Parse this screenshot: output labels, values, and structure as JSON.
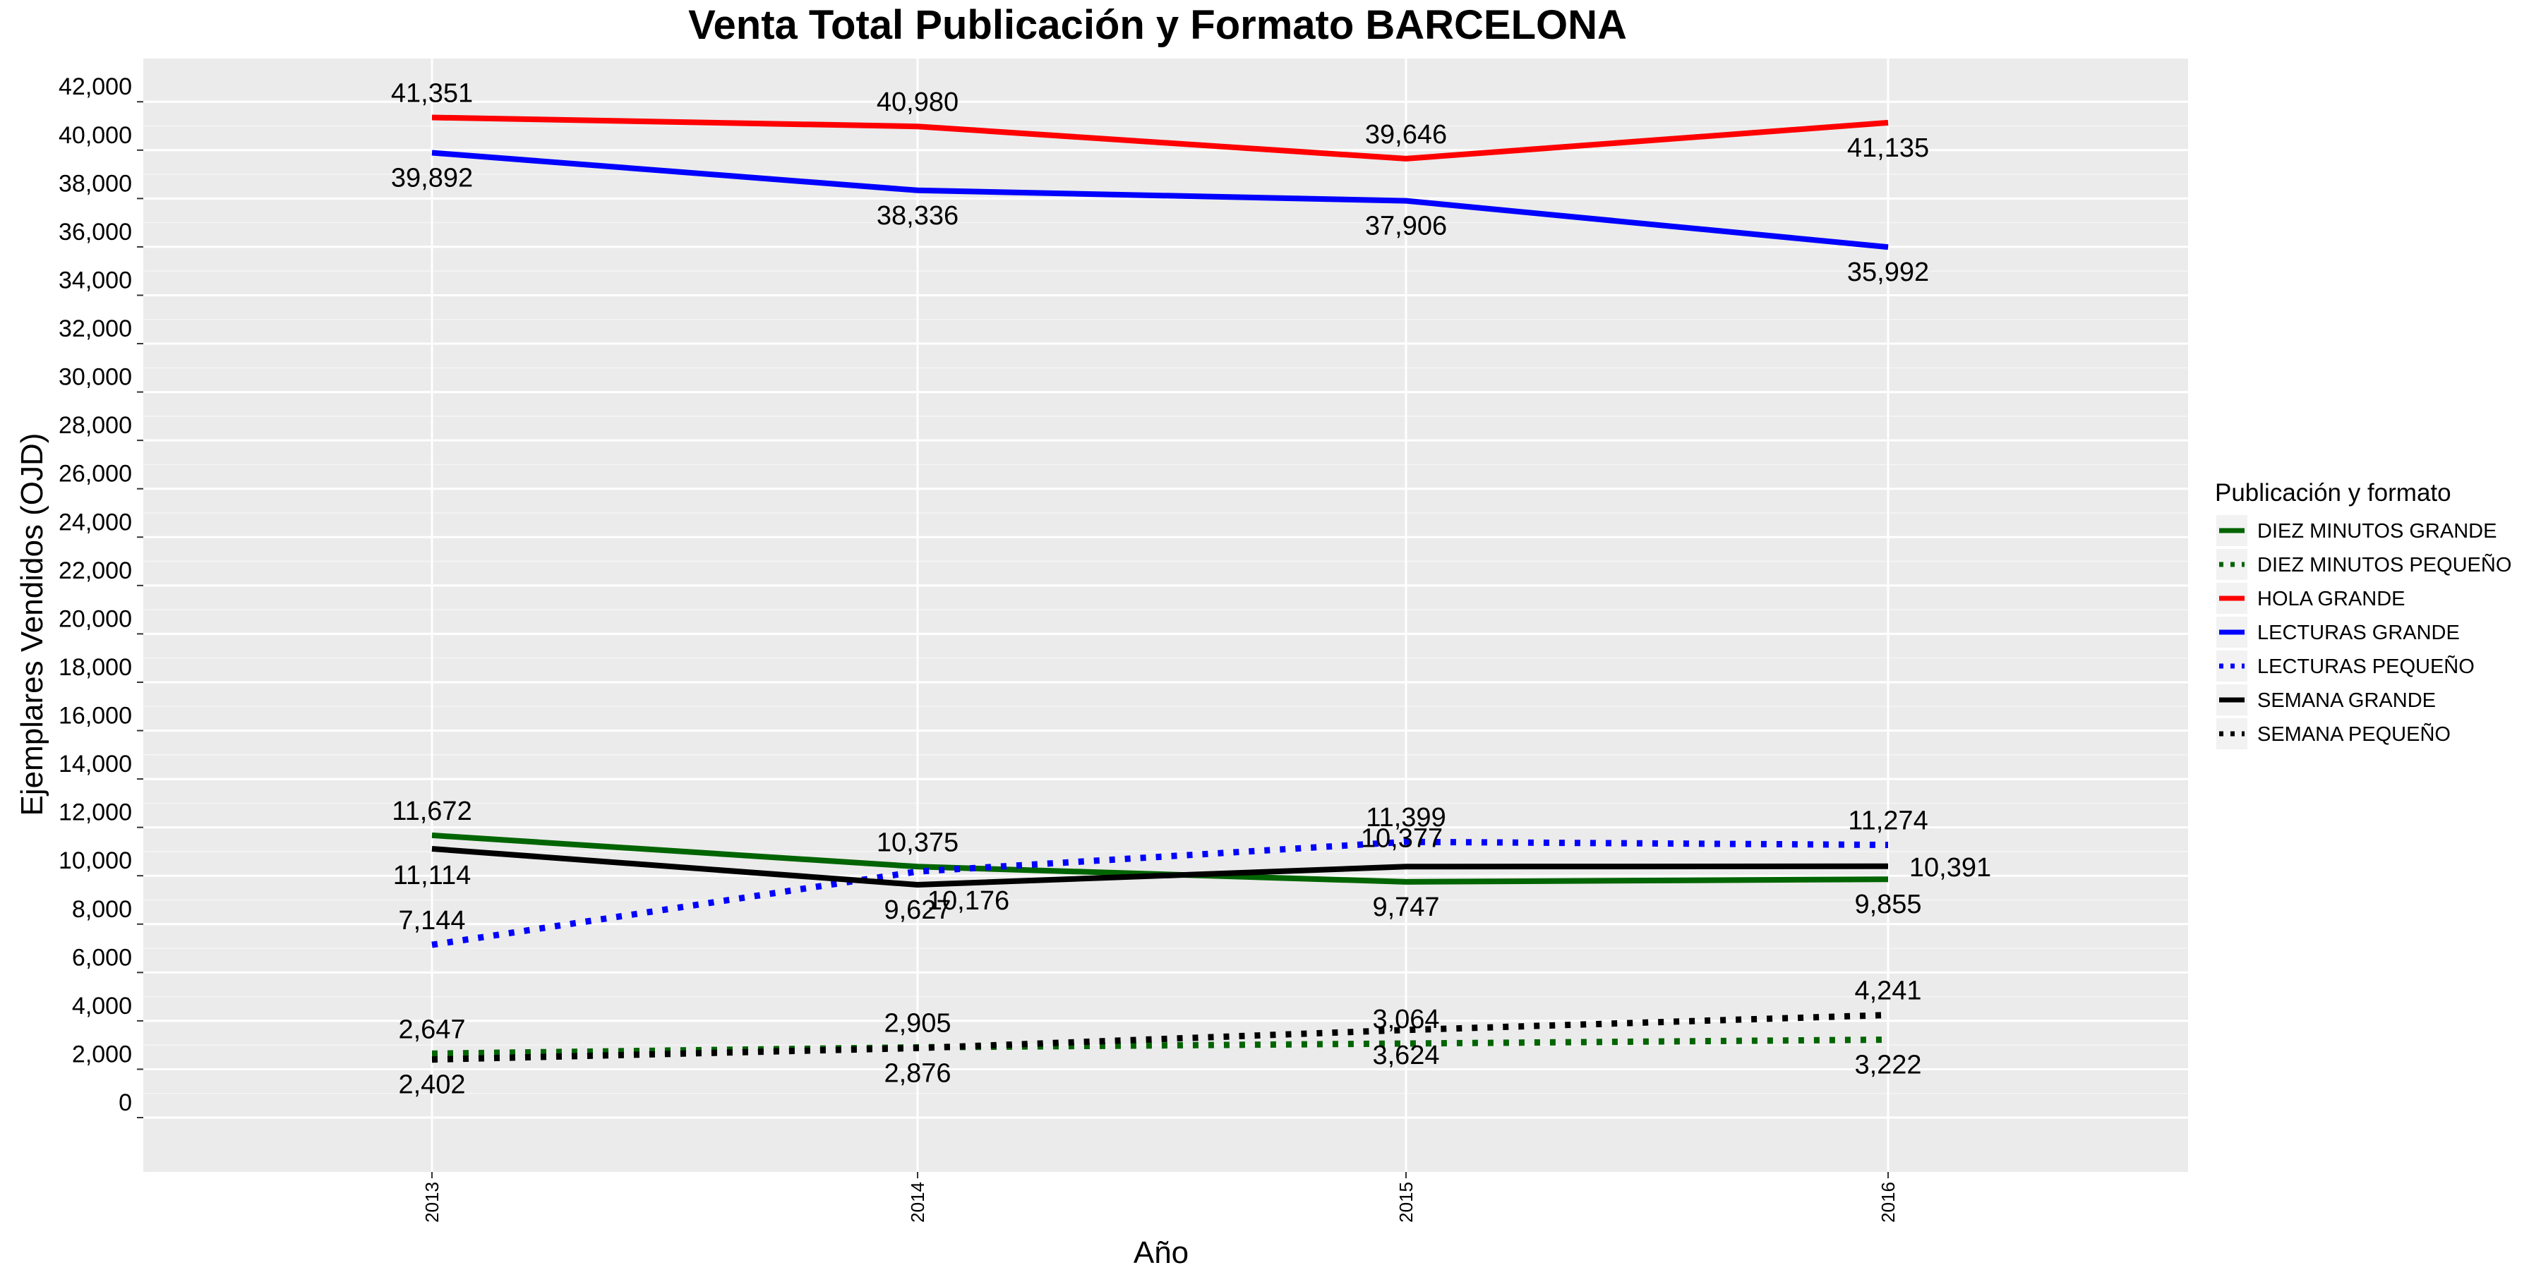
{
  "chart_data": {
    "type": "line",
    "title": "Venta Total Publicación y Formato  BARCELONA",
    "xlabel": "Año",
    "ylabel": "Ejemplares Vendidos (OJD)",
    "x": [
      "2013",
      "2014",
      "2015",
      "2016"
    ],
    "ylim": [
      -2000,
      43000
    ],
    "yticks": [
      0,
      2000,
      4000,
      6000,
      8000,
      10000,
      12000,
      14000,
      16000,
      18000,
      20000,
      22000,
      24000,
      26000,
      28000,
      30000,
      32000,
      34000,
      36000,
      38000,
      40000,
      42000
    ],
    "ytick_labels": [
      "0",
      "2,000",
      "4,000",
      "6,000",
      "8,000",
      "10,000",
      "12,000",
      "14,000",
      "16,000",
      "18,000",
      "20,000",
      "22,000",
      "24,000",
      "26,000",
      "28,000",
      "30,000",
      "32,000",
      "34,000",
      "36,000",
      "38,000",
      "40,000",
      "42,000"
    ],
    "legend_title": "Publicación y formato",
    "legend_position": "right",
    "grid": true,
    "series": [
      {
        "name": "DIEZ MINUTOS GRANDE",
        "values": [
          11672,
          10375,
          9747,
          9855
        ],
        "labels": [
          "11,672",
          "10,375",
          "9,747",
          "9,855"
        ],
        "color": "#006400",
        "dash": "solid"
      },
      {
        "name": "DIEZ MINUTOS PEQUEÑO",
        "values": [
          2647,
          2905,
          3064,
          3222
        ],
        "labels": [
          "2,647",
          "2,905",
          "3,064",
          "3,222"
        ],
        "color": "#006400",
        "dash": "dotted"
      },
      {
        "name": "HOLA GRANDE",
        "values": [
          41351,
          40980,
          39646,
          41135
        ],
        "labels": [
          "41,351",
          "40,980",
          "39,646",
          "41,135"
        ],
        "color": "#ff0000",
        "dash": "solid"
      },
      {
        "name": "LECTURAS GRANDE",
        "values": [
          39892,
          38336,
          37906,
          35992
        ],
        "labels": [
          "39,892",
          "38,336",
          "37,906",
          "35,992"
        ],
        "color": "#0000ff",
        "dash": "solid"
      },
      {
        "name": "LECTURAS PEQUEÑO",
        "values": [
          7144,
          10176,
          11399,
          11274
        ],
        "labels": [
          "7,144",
          "10,176",
          "11,399",
          "11,274"
        ],
        "color": "#0000ff",
        "dash": "dotted"
      },
      {
        "name": "SEMANA GRANDE",
        "values": [
          11114,
          9627,
          10377,
          10391
        ],
        "labels": [
          "11,114",
          "9,627",
          "10,377",
          "10,391"
        ],
        "color": "#000000",
        "dash": "solid"
      },
      {
        "name": "SEMANA PEQUEÑO",
        "values": [
          2402,
          2876,
          3624,
          4241
        ],
        "labels": [
          "2,402",
          "2,876",
          "3,624",
          "4,241"
        ],
        "color": "#000000",
        "dash": "dotted"
      }
    ]
  }
}
